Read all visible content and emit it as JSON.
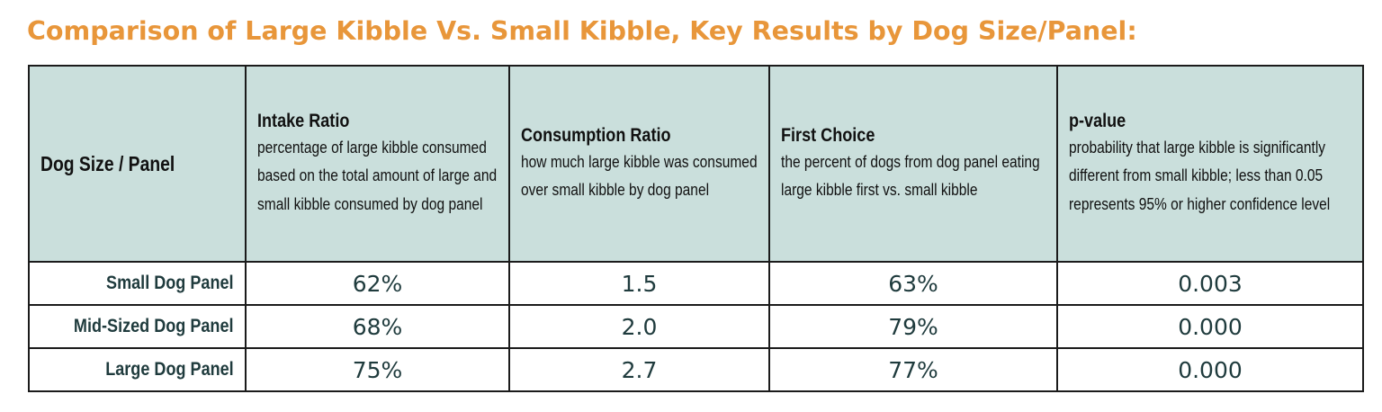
{
  "title": "Comparison of Large Kibble Vs. Small Kibble, Key Results by Dog Size/Panel:",
  "colors": {
    "title": "#e8963a",
    "header_bg": "#cadfdc",
    "border": "#1b1b1b",
    "value_text": "#1f3b3d"
  },
  "table": {
    "first_header": "Dog Size / Panel",
    "columns": [
      {
        "title": "Intake Ratio",
        "desc": "percentage of large kibble consumed based on the total amount of large and small kibble consumed by dog panel"
      },
      {
        "title": "Consumption Ratio",
        "desc": "how much large kibble was consumed over small kibble by dog panel"
      },
      {
        "title": "First Choice",
        "desc": "the percent of dogs from dog panel eating large kibble first vs. small kibble"
      },
      {
        "title": "p-value",
        "desc": "probability that large kibble is significantly different from small kibble; less than 0.05 represents 95% or higher confidence level"
      }
    ],
    "rows": [
      {
        "label": "Small Dog Panel",
        "values": [
          "62%",
          "1.5",
          "63%",
          "0.003"
        ]
      },
      {
        "label": "Mid-Sized Dog Panel",
        "values": [
          "68%",
          "2.0",
          "79%",
          "0.000"
        ]
      },
      {
        "label": "Large Dog Panel",
        "values": [
          "75%",
          "2.7",
          "77%",
          "0.000"
        ]
      }
    ]
  }
}
